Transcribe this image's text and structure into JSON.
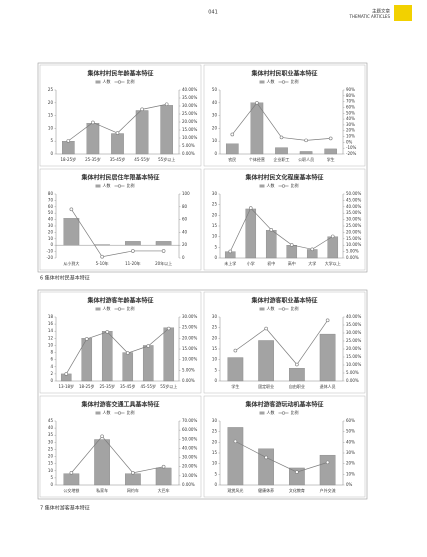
{
  "header": {
    "page_number": "041",
    "section": "主题文章",
    "section_en": "THEMATIC ARTICLES"
  },
  "captions": [
    "6 集体村村民基本特征",
    "7 集体村游客基本特征"
  ],
  "chart_data": [
    {
      "type": "bar-line",
      "title": "集体村村民年龄基本特征",
      "categories": [
        "18-25岁",
        "25-35岁",
        "35-45岁",
        "45-55岁",
        "55岁以上"
      ],
      "series": [
        {
          "name": "人数",
          "color": "#a3a3a3",
          "values": [
            5,
            12,
            8,
            17,
            19
          ]
        },
        {
          "name": "比例",
          "color": "#7d7d7d",
          "axis": "y2",
          "values": [
            8.2,
            19.7,
            13.1,
            27.9,
            31.1
          ]
        }
      ],
      "ylim": [
        0,
        25
      ],
      "yticks": [
        0,
        5,
        10,
        15,
        20,
        25
      ],
      "y2lim": [
        0,
        40
      ],
      "y2ticks": [
        {
          "value": 0,
          "label": "0.00%"
        },
        {
          "value": 5,
          "label": "5.00%"
        },
        {
          "value": 10,
          "label": "10.00%"
        },
        {
          "value": 15,
          "label": "15.00%"
        },
        {
          "value": 20,
          "label": "20.00%"
        },
        {
          "value": 25,
          "label": "25.00%"
        },
        {
          "value": 30,
          "label": "30.00%"
        },
        {
          "value": 35,
          "label": "35.00%"
        },
        {
          "value": 40,
          "label": "40.00%"
        }
      ]
    },
    {
      "type": "bar-line",
      "title": "集体村村民职业基本特征",
      "categories": [
        "农民",
        "个体经营",
        "企业职工",
        "公职人员",
        "学生"
      ],
      "series": [
        {
          "name": "人数",
          "color": "#a3a3a3",
          "values": [
            8,
            40,
            5,
            2,
            4
          ]
        },
        {
          "name": "比例",
          "color": "#7d7d7d",
          "axis": "y2",
          "values": [
            13.6,
            67.8,
            8.5,
            3.4,
            6.8
          ]
        }
      ],
      "ylim": [
        0,
        50
      ],
      "yticks": [
        0,
        10,
        20,
        30,
        40,
        50
      ],
      "y2lim": [
        -20,
        90
      ],
      "y2ticks": [
        {
          "value": -20,
          "label": "-20%"
        },
        {
          "value": -10,
          "label": "-10%"
        },
        {
          "value": 0,
          "label": "0%"
        },
        {
          "value": 10,
          "label": "10%"
        },
        {
          "value": 20,
          "label": "20%"
        },
        {
          "value": 30,
          "label": "30%"
        },
        {
          "value": 40,
          "label": "40%"
        },
        {
          "value": 50,
          "label": "50%"
        },
        {
          "value": 60,
          "label": "60%"
        },
        {
          "value": 70,
          "label": "70%"
        },
        {
          "value": 80,
          "label": "80%"
        },
        {
          "value": 90,
          "label": "90%"
        }
      ]
    },
    {
      "type": "bar-line",
      "title": "集体村村民居住年限基本特征",
      "categories": [
        "从小到大",
        "5-10年",
        "11-20年",
        "20年以上"
      ],
      "series": [
        {
          "name": "人数",
          "color": "#a3a3a3",
          "values": [
            42,
            1,
            6,
            6
          ]
        },
        {
          "name": "比例",
          "color": "#7d7d7d",
          "axis": "y2",
          "values": [
            76,
            2,
            11,
            11
          ]
        }
      ],
      "ylim": [
        -20,
        80
      ],
      "yticks": [
        -20,
        -10,
        0,
        10,
        20,
        30,
        40,
        50,
        60,
        70,
        80
      ],
      "y2lim": [
        0,
        100
      ],
      "y2ticks": [
        0,
        20,
        40,
        60,
        80,
        100
      ]
    },
    {
      "type": "bar-line",
      "title": "集体村村民文化程度基本特征",
      "categories": [
        "未上学",
        "小学",
        "初中",
        "高中",
        "大学",
        "大学以上"
      ],
      "series": [
        {
          "name": "人数",
          "color": "#a3a3a3",
          "values": [
            3,
            23,
            13,
            6,
            4,
            10
          ]
        },
        {
          "name": "比例",
          "color": "#7d7d7d",
          "axis": "y2",
          "values": [
            5.1,
            39,
            22,
            10.2,
            6.8,
            16.9
          ]
        }
      ],
      "ylim": [
        0,
        30
      ],
      "yticks": [
        0,
        5,
        10,
        15,
        20,
        25,
        30
      ],
      "y2lim": [
        0,
        50
      ],
      "y2ticks": [
        {
          "value": 0,
          "label": "0.00%"
        },
        {
          "value": 5,
          "label": "5.00%"
        },
        {
          "value": 10,
          "label": "10.00%"
        },
        {
          "value": 15,
          "label": "15.00%"
        },
        {
          "value": 20,
          "label": "20.00%"
        },
        {
          "value": 25,
          "label": "25.00%"
        },
        {
          "value": 30,
          "label": "30.00%"
        },
        {
          "value": 35,
          "label": "35.00%"
        },
        {
          "value": 40,
          "label": "40.00%"
        },
        {
          "value": 45,
          "label": "45.00%"
        },
        {
          "value": 50,
          "label": "50.00%"
        }
      ]
    },
    {
      "type": "bar-line",
      "title": "集体村游客年龄基本特征",
      "categories": [
        "13-18岁",
        "18-25岁",
        "25-35岁",
        "35-45岁",
        "45-55岁",
        "55岁以上"
      ],
      "series": [
        {
          "name": "人数",
          "color": "#a3a3a3",
          "values": [
            2,
            12,
            14,
            8,
            10,
            15
          ]
        },
        {
          "name": "比例",
          "color": "#7d7d7d",
          "axis": "y2",
          "values": [
            3.3,
            19.7,
            23,
            13.1,
            16.4,
            24.6
          ]
        }
      ],
      "ylim": [
        0,
        18
      ],
      "yticks": [
        0,
        2,
        4,
        6,
        8,
        10,
        12,
        14,
        16,
        18
      ],
      "y2lim": [
        0,
        30
      ],
      "y2ticks": [
        {
          "value": 0,
          "label": "0.00%"
        },
        {
          "value": 5,
          "label": "5.00%"
        },
        {
          "value": 10,
          "label": "10.00%"
        },
        {
          "value": 15,
          "label": "15.00%"
        },
        {
          "value": 20,
          "label": "20.00%"
        },
        {
          "value": 25,
          "label": "25.00%"
        },
        {
          "value": 30,
          "label": "30.00%"
        }
      ]
    },
    {
      "type": "bar-line",
      "title": "集体村游客职业基本特征",
      "categories": [
        "学生",
        "固定职业",
        "自由职业",
        "退休人员"
      ],
      "series": [
        {
          "name": "人数",
          "color": "#a3a3a3",
          "values": [
            11,
            19,
            6,
            22
          ]
        },
        {
          "name": "比例",
          "color": "#7d7d7d",
          "axis": "y2",
          "values": [
            19,
            32.8,
            10.3,
            37.9
          ]
        }
      ],
      "ylim": [
        0,
        30
      ],
      "yticks": [
        0,
        5,
        10,
        15,
        20,
        25,
        30
      ],
      "y2lim": [
        0,
        40
      ],
      "y2ticks": [
        {
          "value": 0,
          "label": "0.00%"
        },
        {
          "value": 5,
          "label": "5.00%"
        },
        {
          "value": 10,
          "label": "10.00%"
        },
        {
          "value": 15,
          "label": "15.00%"
        },
        {
          "value": 20,
          "label": "20.00%"
        },
        {
          "value": 25,
          "label": "25.00%"
        },
        {
          "value": 30,
          "label": "30.00%"
        },
        {
          "value": 35,
          "label": "35.00%"
        },
        {
          "value": 40,
          "label": "40.00%"
        }
      ]
    },
    {
      "type": "bar-line",
      "title": "集体村游客交通工具基本特征",
      "categories": [
        "公交地铁",
        "私家车",
        "网约车",
        "大巴车"
      ],
      "series": [
        {
          "name": "人数",
          "color": "#a3a3a3",
          "values": [
            8,
            32,
            8,
            12
          ]
        },
        {
          "name": "比例",
          "color": "#7d7d7d",
          "axis": "y2",
          "values": [
            13.3,
            53.3,
            13.3,
            20
          ]
        }
      ],
      "ylim": [
        0,
        45
      ],
      "yticks": [
        0,
        5,
        10,
        15,
        20,
        25,
        30,
        35,
        40,
        45
      ],
      "y2lim": [
        0,
        70
      ],
      "y2ticks": [
        {
          "value": 0,
          "label": "0.00%"
        },
        {
          "value": 10,
          "label": "10.00%"
        },
        {
          "value": 20,
          "label": "20.00%"
        },
        {
          "value": 30,
          "label": "30.00%"
        },
        {
          "value": 40,
          "label": "40.00%"
        },
        {
          "value": 50,
          "label": "50.00%"
        },
        {
          "value": 60,
          "label": "60.00%"
        },
        {
          "value": 70,
          "label": "70.00%"
        }
      ]
    },
    {
      "type": "bar-line",
      "title": "集体村游客游玩动机基本特征",
      "categories": [
        "观赏风光",
        "健康休养",
        "文化教育",
        "户外交流"
      ],
      "series": [
        {
          "name": "人数",
          "color": "#a3a3a3",
          "values": [
            27,
            17,
            8,
            14
          ]
        },
        {
          "name": "比例",
          "color": "#7d7d7d",
          "axis": "y2",
          "values": [
            40.9,
            25.8,
            12.1,
            21.2
          ]
        }
      ],
      "ylim": [
        0,
        30
      ],
      "yticks": [
        0,
        5,
        10,
        15,
        20,
        25,
        30
      ],
      "y2lim": [
        0,
        60
      ],
      "y2ticks": [
        {
          "value": 0,
          "label": "0%"
        },
        {
          "value": 10,
          "label": "10%"
        },
        {
          "value": 20,
          "label": "20%"
        },
        {
          "value": 30,
          "label": "30%"
        },
        {
          "value": 40,
          "label": "40%"
        },
        {
          "value": 50,
          "label": "50%"
        },
        {
          "value": 60,
          "label": "60%"
        }
      ]
    }
  ]
}
